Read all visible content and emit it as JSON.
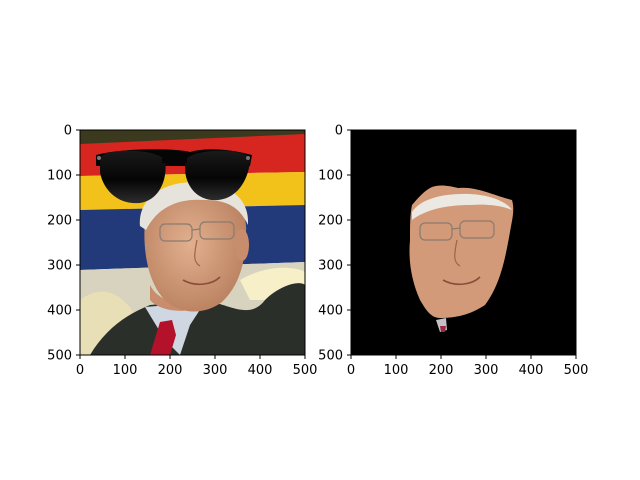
{
  "panels": [
    {
      "id": "left",
      "description_kind": "photo-with-sunglasses",
      "xticks": [
        "0",
        "100",
        "200",
        "300",
        "400",
        "500"
      ],
      "yticks": [
        "0",
        "100",
        "200",
        "300",
        "400",
        "500"
      ],
      "colors": {
        "background_band_top": "#3b3a1e",
        "flag_red": "#d7261f",
        "flag_yellow": "#f3c21a",
        "flag_blue": "#223a7a",
        "skin": "#d6a07f",
        "hair": "#e6e3dc",
        "suit": "#2a2f2a",
        "shirt": "#cfd7e3",
        "tie": "#b3122a",
        "sunglasses": "#050505"
      }
    },
    {
      "id": "right",
      "description_kind": "masked-face-on-black",
      "xticks": [
        "0",
        "100",
        "200",
        "300",
        "400",
        "500"
      ],
      "yticks": [
        "0",
        "100",
        "200",
        "300",
        "400",
        "500"
      ],
      "colors": {
        "background": "#000000",
        "skin": "#d29a78",
        "hair": "#ece9e2"
      }
    }
  ]
}
